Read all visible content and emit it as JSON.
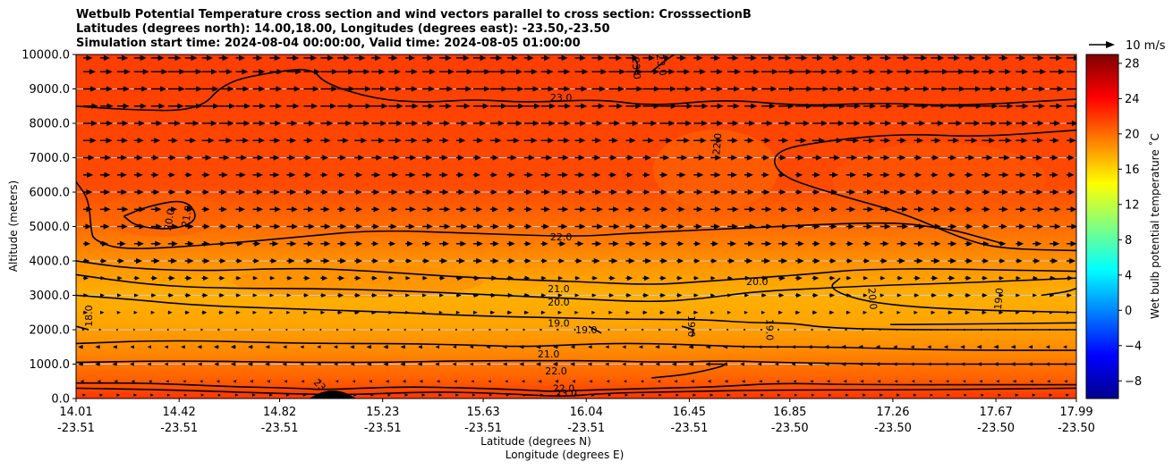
{
  "chart_data": {
    "type": "contour",
    "title_lines": [
      "Wetbulb Potential Temperature cross section and wind vectors parallel to cross section: CrosssectionB",
      "Latitudes (degrees north): 14.00,18.00, Longitudes (degrees east): -23.50,-23.50",
      "Simulation start time: 2024-08-04 00:00:00, Valid time: 2024-08-05 01:00:00"
    ],
    "ylabel": "Altitude (meters)",
    "xlabel_lat": "Latitude (degrees N)",
    "xlabel_lon": "Longitude (degrees E)",
    "ylim": [
      0,
      10000
    ],
    "y_ticks": [
      "0.0",
      "1000.0",
      "2000.0",
      "3000.0",
      "4000.0",
      "5000.0",
      "6000.0",
      "7000.0",
      "8000.0",
      "9000.0",
      "10000.0"
    ],
    "y_tick_values": [
      0,
      1000,
      2000,
      3000,
      4000,
      5000,
      6000,
      7000,
      8000,
      9000,
      10000
    ],
    "x_ticks_lat": [
      "14.01",
      "14.42",
      "14.82",
      "15.23",
      "15.63",
      "16.04",
      "16.45",
      "16.85",
      "17.26",
      "17.67",
      "17.99"
    ],
    "x_ticks_lon": [
      "-23.51",
      "-23.51",
      "-23.51",
      "-23.51",
      "-23.51",
      "-23.51",
      "-23.51",
      "-23.50",
      "-23.50",
      "-23.50",
      "-23.50"
    ],
    "x_tick_values": [
      14.01,
      14.42,
      14.82,
      15.23,
      15.63,
      16.04,
      16.45,
      16.85,
      17.26,
      17.67,
      17.99
    ],
    "xlim": [
      14.01,
      17.99
    ],
    "colorbar": {
      "label": "Wet bulb potential temperature ˚C",
      "ticks": [
        "28",
        "24",
        "20",
        "16",
        "12",
        "8",
        "4",
        "0",
        "−4",
        "−8"
      ],
      "tick_values": [
        28,
        24,
        20,
        16,
        12,
        8,
        4,
        0,
        -4,
        -8
      ],
      "range": [
        -10,
        29
      ]
    },
    "quiver_key": {
      "label": "10 m/s",
      "speed": 10
    },
    "contour_levels": [
      18.0,
      19.0,
      20.0,
      21.0,
      22.0,
      23.0
    ],
    "contour_labels": [
      {
        "text": "23.0",
        "lat": 15.94,
        "alt": 8750
      },
      {
        "text": "23.0",
        "lat": 16.24,
        "alt": 9600
      },
      {
        "text": "23.0",
        "lat": 16.34,
        "alt": 9700
      },
      {
        "text": "22.0",
        "lat": 16.56,
        "alt": 7400
      },
      {
        "text": "22.0",
        "lat": 15.94,
        "alt": 4700
      },
      {
        "text": "21.0",
        "lat": 14.45,
        "alt": 5300
      },
      {
        "text": "20.0",
        "lat": 14.38,
        "alt": 5200
      },
      {
        "text": "21.0",
        "lat": 15.93,
        "alt": 3200
      },
      {
        "text": "20.0",
        "lat": 15.93,
        "alt": 2800
      },
      {
        "text": "20.0",
        "lat": 16.72,
        "alt": 3400
      },
      {
        "text": "20.0",
        "lat": 17.18,
        "alt": 2900
      },
      {
        "text": "19.0",
        "lat": 17.68,
        "alt": 2900
      },
      {
        "text": "19.0",
        "lat": 15.93,
        "alt": 2200
      },
      {
        "text": "19.0",
        "lat": 16.04,
        "alt": 2000
      },
      {
        "text": "19.0",
        "lat": 16.46,
        "alt": 2100
      },
      {
        "text": "19.0",
        "lat": 16.77,
        "alt": 2000
      },
      {
        "text": "18.0",
        "lat": 14.06,
        "alt": 2400
      },
      {
        "text": "21.0",
        "lat": 15.89,
        "alt": 1300
      },
      {
        "text": "22.0",
        "lat": 15.92,
        "alt": 800
      },
      {
        "text": "22.0",
        "lat": 15.95,
        "alt": 300
      },
      {
        "text": "23.0",
        "lat": 15.96,
        "alt": 150
      },
      {
        "text": "23",
        "lat": 14.98,
        "alt": 400
      }
    ],
    "contour_lines": [
      {
        "level": 23,
        "points": [
          [
            14.01,
            8500
          ],
          [
            14.2,
            8400
          ],
          [
            14.5,
            8350
          ],
          [
            14.6,
            9200
          ],
          [
            14.8,
            9500
          ],
          [
            14.95,
            9600
          ],
          [
            15.0,
            9150
          ],
          [
            15.2,
            8700
          ],
          [
            15.4,
            8600
          ],
          [
            15.6,
            8700
          ],
          [
            15.8,
            8600
          ],
          [
            16.1,
            8700
          ],
          [
            16.3,
            8500
          ],
          [
            16.6,
            8700
          ],
          [
            16.9,
            8500
          ],
          [
            17.2,
            8600
          ],
          [
            17.5,
            8500
          ],
          [
            17.99,
            8700
          ]
        ]
      },
      {
        "level": 23,
        "points": [
          [
            16.22,
            10000
          ],
          [
            16.25,
            9700
          ],
          [
            16.23,
            9400
          ]
        ]
      },
      {
        "level": 23,
        "points": [
          [
            16.39,
            10000
          ],
          [
            16.35,
            9800
          ],
          [
            16.3,
            9500
          ]
        ]
      },
      {
        "level": 22,
        "points": [
          [
            17.99,
            4300
          ],
          [
            17.7,
            4350
          ],
          [
            17.55,
            4600
          ],
          [
            17.3,
            5400
          ],
          [
            17.0,
            6000
          ],
          [
            16.8,
            6500
          ],
          [
            16.78,
            7200
          ],
          [
            17.0,
            7500
          ],
          [
            17.3,
            7700
          ],
          [
            17.6,
            7600
          ],
          [
            17.99,
            7800
          ]
        ]
      },
      {
        "level": 22,
        "points": [
          [
            14.01,
            6300
          ],
          [
            14.06,
            5800
          ],
          [
            14.07,
            4900
          ],
          [
            14.08,
            4600
          ],
          [
            14.2,
            4300
          ],
          [
            14.6,
            4500
          ],
          [
            14.9,
            4700
          ],
          [
            15.2,
            4900
          ],
          [
            15.6,
            4800
          ],
          [
            16.0,
            4700
          ],
          [
            16.2,
            4800
          ],
          [
            16.5,
            4900
          ],
          [
            16.8,
            5000
          ],
          [
            17.1,
            5100
          ],
          [
            17.3,
            5100
          ],
          [
            17.4,
            5000
          ],
          [
            17.5,
            4900
          ],
          [
            17.6,
            4700
          ],
          [
            17.7,
            4500
          ]
        ]
      },
      {
        "level": 21,
        "points": [
          [
            14.01,
            4000
          ],
          [
            14.2,
            3800
          ],
          [
            14.5,
            3700
          ],
          [
            14.9,
            3800
          ],
          [
            15.2,
            3700
          ],
          [
            15.6,
            3500
          ],
          [
            16.0,
            3400
          ],
          [
            16.3,
            3300
          ],
          [
            16.5,
            3400
          ],
          [
            16.7,
            3500
          ],
          [
            16.9,
            3600
          ],
          [
            17.2,
            3800
          ],
          [
            17.99,
            3700
          ]
        ]
      },
      {
        "level": 21,
        "points": [
          [
            14.2,
            5300
          ],
          [
            14.3,
            5600
          ],
          [
            14.45,
            5800
          ],
          [
            14.5,
            5200
          ],
          [
            14.4,
            4900
          ],
          [
            14.25,
            5000
          ],
          [
            14.2,
            5300
          ]
        ]
      },
      {
        "level": 21,
        "points": [
          [
            16.52,
            1000
          ],
          [
            16.62,
            1000
          ],
          [
            16.45,
            700
          ],
          [
            16.3,
            600
          ]
        ]
      },
      {
        "level": 20,
        "points": [
          [
            14.01,
            3600
          ],
          [
            14.3,
            3300
          ],
          [
            14.6,
            3200
          ],
          [
            15.0,
            3200
          ],
          [
            15.4,
            3100
          ],
          [
            15.7,
            3000
          ],
          [
            16.0,
            2900
          ],
          [
            16.3,
            2800
          ],
          [
            16.5,
            2900
          ],
          [
            16.7,
            3100
          ],
          [
            16.95,
            3200
          ],
          [
            17.25,
            3300
          ],
          [
            17.5,
            3350
          ],
          [
            17.99,
            3500
          ]
        ]
      },
      {
        "level": 20,
        "points": [
          [
            17.05,
            3500
          ],
          [
            17.0,
            3200
          ],
          [
            17.15,
            2800
          ],
          [
            17.45,
            2600
          ],
          [
            17.99,
            2500
          ]
        ]
      },
      {
        "level": 20,
        "points": [
          [
            17.85,
            3000
          ],
          [
            17.95,
            3100
          ],
          [
            17.99,
            3200
          ]
        ]
      },
      {
        "level": 19,
        "points": [
          [
            14.01,
            3000
          ],
          [
            14.2,
            2900
          ],
          [
            14.5,
            2700
          ],
          [
            14.9,
            2600
          ],
          [
            15.3,
            2500
          ],
          [
            15.6,
            2400
          ],
          [
            15.9,
            2350
          ],
          [
            16.2,
            2300
          ],
          [
            16.5,
            2300
          ],
          [
            16.7,
            2200
          ],
          [
            16.85,
            2200
          ],
          [
            17.0,
            2050
          ],
          [
            17.3,
            2000
          ],
          [
            17.6,
            2000
          ],
          [
            17.99,
            2000
          ]
        ]
      },
      {
        "level": 19,
        "points": [
          [
            16.42,
            2100
          ],
          [
            16.47,
            2000
          ],
          [
            16.46,
            1800
          ]
        ]
      },
      {
        "level": 19,
        "points": [
          [
            16.05,
            2100
          ],
          [
            16.1,
            1900
          ]
        ]
      },
      {
        "level": 19,
        "points": [
          [
            17.25,
            2150
          ],
          [
            17.4,
            2150
          ],
          [
            17.99,
            2200
          ]
        ]
      },
      {
        "level": 18,
        "points": [
          [
            14.01,
            2100
          ],
          [
            14.06,
            2000
          ]
        ]
      },
      {
        "level": 21,
        "points": [
          [
            14.01,
            1600
          ],
          [
            14.4,
            1700
          ],
          [
            14.9,
            1600
          ],
          [
            15.3,
            1600
          ],
          [
            15.6,
            1550
          ],
          [
            15.8,
            1500
          ],
          [
            16.1,
            1600
          ],
          [
            16.3,
            1600
          ],
          [
            16.5,
            1550
          ],
          [
            16.7,
            1500
          ],
          [
            17.0,
            1500
          ],
          [
            17.5,
            1400
          ],
          [
            17.99,
            1400
          ]
        ]
      },
      {
        "level": 21,
        "points": [
          [
            14.01,
            1050
          ],
          [
            14.4,
            1100
          ],
          [
            14.9,
            1050
          ],
          [
            15.2,
            1050
          ],
          [
            15.6,
            1100
          ],
          [
            15.9,
            1100
          ],
          [
            16.1,
            1100
          ],
          [
            16.35,
            1050
          ],
          [
            16.6,
            1100
          ],
          [
            16.8,
            1050
          ],
          [
            17.2,
            1000
          ],
          [
            17.99,
            1000
          ]
        ]
      },
      {
        "level": 22,
        "points": [
          [
            14.01,
            450
          ],
          [
            14.3,
            450
          ],
          [
            14.6,
            350
          ],
          [
            14.9,
            300
          ],
          [
            15.0,
            250
          ],
          [
            15.3,
            350
          ],
          [
            15.6,
            300
          ],
          [
            15.8,
            250
          ],
          [
            15.9,
            200
          ],
          [
            16.05,
            250
          ],
          [
            16.35,
            300
          ],
          [
            16.6,
            350
          ],
          [
            16.8,
            450
          ],
          [
            17.1,
            400
          ],
          [
            17.99,
            400
          ]
        ]
      },
      {
        "level": 23,
        "points": [
          [
            14.01,
            300
          ],
          [
            14.4,
            250
          ],
          [
            14.8,
            150
          ],
          [
            15.1,
            100
          ],
          [
            15.4,
            200
          ],
          [
            15.7,
            150
          ],
          [
            15.95,
            50
          ],
          [
            16.1,
            150
          ],
          [
            16.4,
            200
          ],
          [
            16.8,
            250
          ],
          [
            17.3,
            250
          ],
          [
            17.99,
            300
          ]
        ]
      }
    ],
    "wind_field": {
      "description": "Wind vectors parallel to cross section; strong eastward flow aloft, weak westward flow in lower layer",
      "profile": [
        {
          "alt": 9900,
          "u": 6.5
        },
        {
          "alt": 9500,
          "u": 8.5
        },
        {
          "alt": 9000,
          "u": 8.5
        },
        {
          "alt": 8500,
          "u": 8.5
        },
        {
          "alt": 8000,
          "u": 7.5
        },
        {
          "alt": 7500,
          "u": 6.5
        },
        {
          "alt": 7000,
          "u": 5.5
        },
        {
          "alt": 6500,
          "u": 5.0
        },
        {
          "alt": 6000,
          "u": 5.0
        },
        {
          "alt": 5500,
          "u": 5.5
        },
        {
          "alt": 5000,
          "u": 5.5
        },
        {
          "alt": 4500,
          "u": 5.0
        },
        {
          "alt": 4000,
          "u": 4.5
        },
        {
          "alt": 3500,
          "u": 3.5
        },
        {
          "alt": 3000,
          "u": 3.0
        },
        {
          "alt": 2500,
          "u": 2.5
        },
        {
          "alt": 2000,
          "u": 0.8
        },
        {
          "alt": 1500,
          "u": -2.5
        },
        {
          "alt": 1000,
          "u": -2.5
        },
        {
          "alt": 500,
          "u": -1.5
        },
        {
          "alt": 100,
          "u": 1.5
        }
      ]
    }
  }
}
